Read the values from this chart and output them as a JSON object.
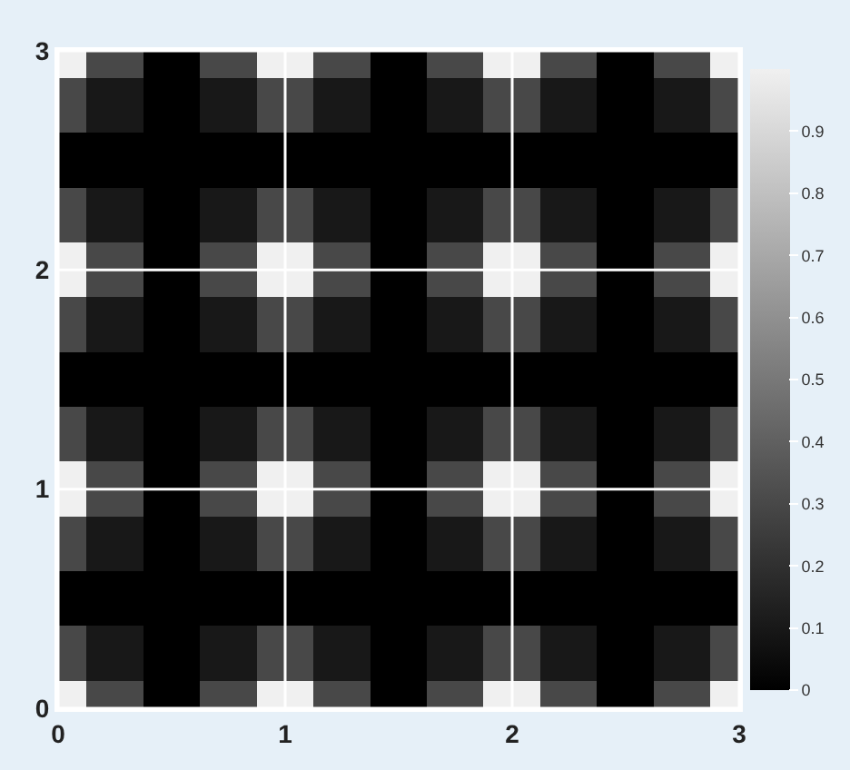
{
  "chart_data": {
    "type": "heatmap",
    "x": [
      0,
      0.25,
      0.5,
      0.75,
      1,
      1.25,
      1.5,
      1.75,
      2,
      2.25,
      2.5,
      2.75,
      3
    ],
    "y": [
      3,
      2.75,
      2.5,
      2.25,
      2,
      1.75,
      1.5,
      1.25,
      1,
      0.75,
      0.5,
      0.25,
      0
    ],
    "cells": [
      [
        1,
        0.3,
        0,
        0.3,
        1,
        0.3,
        0,
        0.3,
        1,
        0.3,
        0,
        0.3,
        1
      ],
      [
        0.3,
        0.1,
        0,
        0.1,
        0.3,
        0.1,
        0,
        0.1,
        0.3,
        0.1,
        0,
        0.1,
        0.3
      ],
      [
        0,
        0,
        0,
        0,
        0,
        0,
        0,
        0,
        0,
        0,
        0,
        0,
        0
      ],
      [
        0.3,
        0.1,
        0,
        0.1,
        0.3,
        0.1,
        0,
        0.1,
        0.3,
        0.1,
        0,
        0.1,
        0.3
      ],
      [
        1,
        0.3,
        0,
        0.3,
        1,
        0.3,
        0,
        0.3,
        1,
        0.3,
        0,
        0.3,
        1
      ],
      [
        0.3,
        0.1,
        0,
        0.1,
        0.3,
        0.1,
        0,
        0.1,
        0.3,
        0.1,
        0,
        0.1,
        0.3
      ],
      [
        0,
        0,
        0,
        0,
        0,
        0,
        0,
        0,
        0,
        0,
        0,
        0,
        0
      ],
      [
        0.3,
        0.1,
        0,
        0.1,
        0.3,
        0.1,
        0,
        0.1,
        0.3,
        0.1,
        0,
        0.1,
        0.3
      ],
      [
        1,
        0.3,
        0,
        0.3,
        1,
        0.3,
        0,
        0.3,
        1,
        0.3,
        0,
        0.3,
        1
      ],
      [
        0.3,
        0.1,
        0,
        0.1,
        0.3,
        0.1,
        0,
        0.1,
        0.3,
        0.1,
        0,
        0.1,
        0.3
      ],
      [
        0,
        0,
        0,
        0,
        0,
        0,
        0,
        0,
        0,
        0,
        0,
        0,
        0
      ],
      [
        0.3,
        0.1,
        0,
        0.1,
        0.3,
        0.1,
        0,
        0.1,
        0.3,
        0.1,
        0,
        0.1,
        0.3
      ],
      [
        1,
        0.3,
        0,
        0.3,
        1,
        0.3,
        0,
        0.3,
        1,
        0.3,
        0,
        0.3,
        1
      ]
    ],
    "xlim": [
      0,
      3
    ],
    "ylim": [
      0,
      3
    ],
    "xticks": [
      0,
      1,
      2,
      3
    ],
    "yticks": [
      0,
      1,
      2,
      3
    ],
    "clim": [
      0,
      1
    ],
    "cticks": [
      0,
      0.1,
      0.2,
      0.3,
      0.4,
      0.5,
      0.6,
      0.7,
      0.8,
      0.9
    ],
    "grid": true
  }
}
